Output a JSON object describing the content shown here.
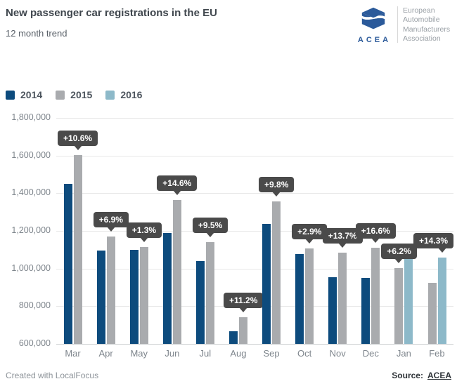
{
  "header": {
    "title": "New passenger car registrations in the EU",
    "subtitle": "12 month trend"
  },
  "logo": {
    "acronym": "ACEA",
    "org_lines": [
      "European",
      "Automobile",
      "Manufacturers",
      "Association"
    ],
    "brand_color": "#2b5a9a"
  },
  "legend": [
    {
      "label": "2014",
      "color": "#0d4b7d"
    },
    {
      "label": "2015",
      "color": "#a9abae"
    },
    {
      "label": "2016",
      "color": "#8db9c9"
    }
  ],
  "chart_data": {
    "type": "bar",
    "title": "New passenger car registrations in the EU",
    "subtitle": "12 month trend",
    "categories": [
      "Mar",
      "Apr",
      "May",
      "Jun",
      "Jul",
      "Aug",
      "Sep",
      "Oct",
      "Nov",
      "Dec",
      "Jan",
      "Feb"
    ],
    "series": [
      {
        "name": "2014",
        "color": "#0d4b7d",
        "values": [
          1450000,
          1095000,
          1100000,
          1190000,
          1040000,
          668000,
          1237000,
          1077000,
          955000,
          951000,
          null,
          null
        ]
      },
      {
        "name": "2015",
        "color": "#a9abae",
        "values": [
          1604000,
          1171000,
          1114000,
          1364000,
          1139000,
          743000,
          1358000,
          1108000,
          1086000,
          1109000,
          1002000,
          925000
        ]
      },
      {
        "name": "2016",
        "color": "#8db9c9",
        "values": [
          null,
          null,
          null,
          null,
          null,
          null,
          null,
          null,
          null,
          null,
          1064000,
          1057000
        ]
      }
    ],
    "labels": [
      {
        "category": "Mar",
        "text": "+10.6%",
        "anchor_series": "2015"
      },
      {
        "category": "Apr",
        "text": "+6.9%",
        "anchor_series": "2015"
      },
      {
        "category": "May",
        "text": "+1.3%",
        "anchor_series": "2015"
      },
      {
        "category": "Jun",
        "text": "+14.6%",
        "anchor_series": "2015"
      },
      {
        "category": "Jul",
        "text": "+9.5%",
        "anchor_series": "2015"
      },
      {
        "category": "Aug",
        "text": "+11.2%",
        "anchor_series": "2015"
      },
      {
        "category": "Sep",
        "text": "+9.8%",
        "anchor_series": "2015"
      },
      {
        "category": "Oct",
        "text": "+2.9%",
        "anchor_series": "2015"
      },
      {
        "category": "Nov",
        "text": "+13.7%",
        "anchor_series": "2015"
      },
      {
        "category": "Dec",
        "text": "+16.6%",
        "anchor_series": "2015"
      },
      {
        "category": "Jan",
        "text": "+6.2%",
        "anchor_series": "2015"
      },
      {
        "category": "Feb",
        "text": "+14.3%",
        "anchor_series": "2016"
      }
    ],
    "ylim": [
      600000,
      1800000
    ],
    "ytick_values": [
      600000,
      800000,
      1000000,
      1200000,
      1400000,
      1600000,
      1800000
    ],
    "ytick_labels": [
      "600,000",
      "800,000",
      "1,000,000",
      "1,200,000",
      "1,400,000",
      "1,600,000",
      "1,800,000"
    ],
    "grid": true,
    "legend_position": "top-left",
    "label_style": {
      "bg": "#4a4a4a",
      "text_color": "#ffffff"
    }
  },
  "footer": {
    "credit": "Created with LocalFocus",
    "source_label": "Source:",
    "source_link": "ACEA"
  }
}
